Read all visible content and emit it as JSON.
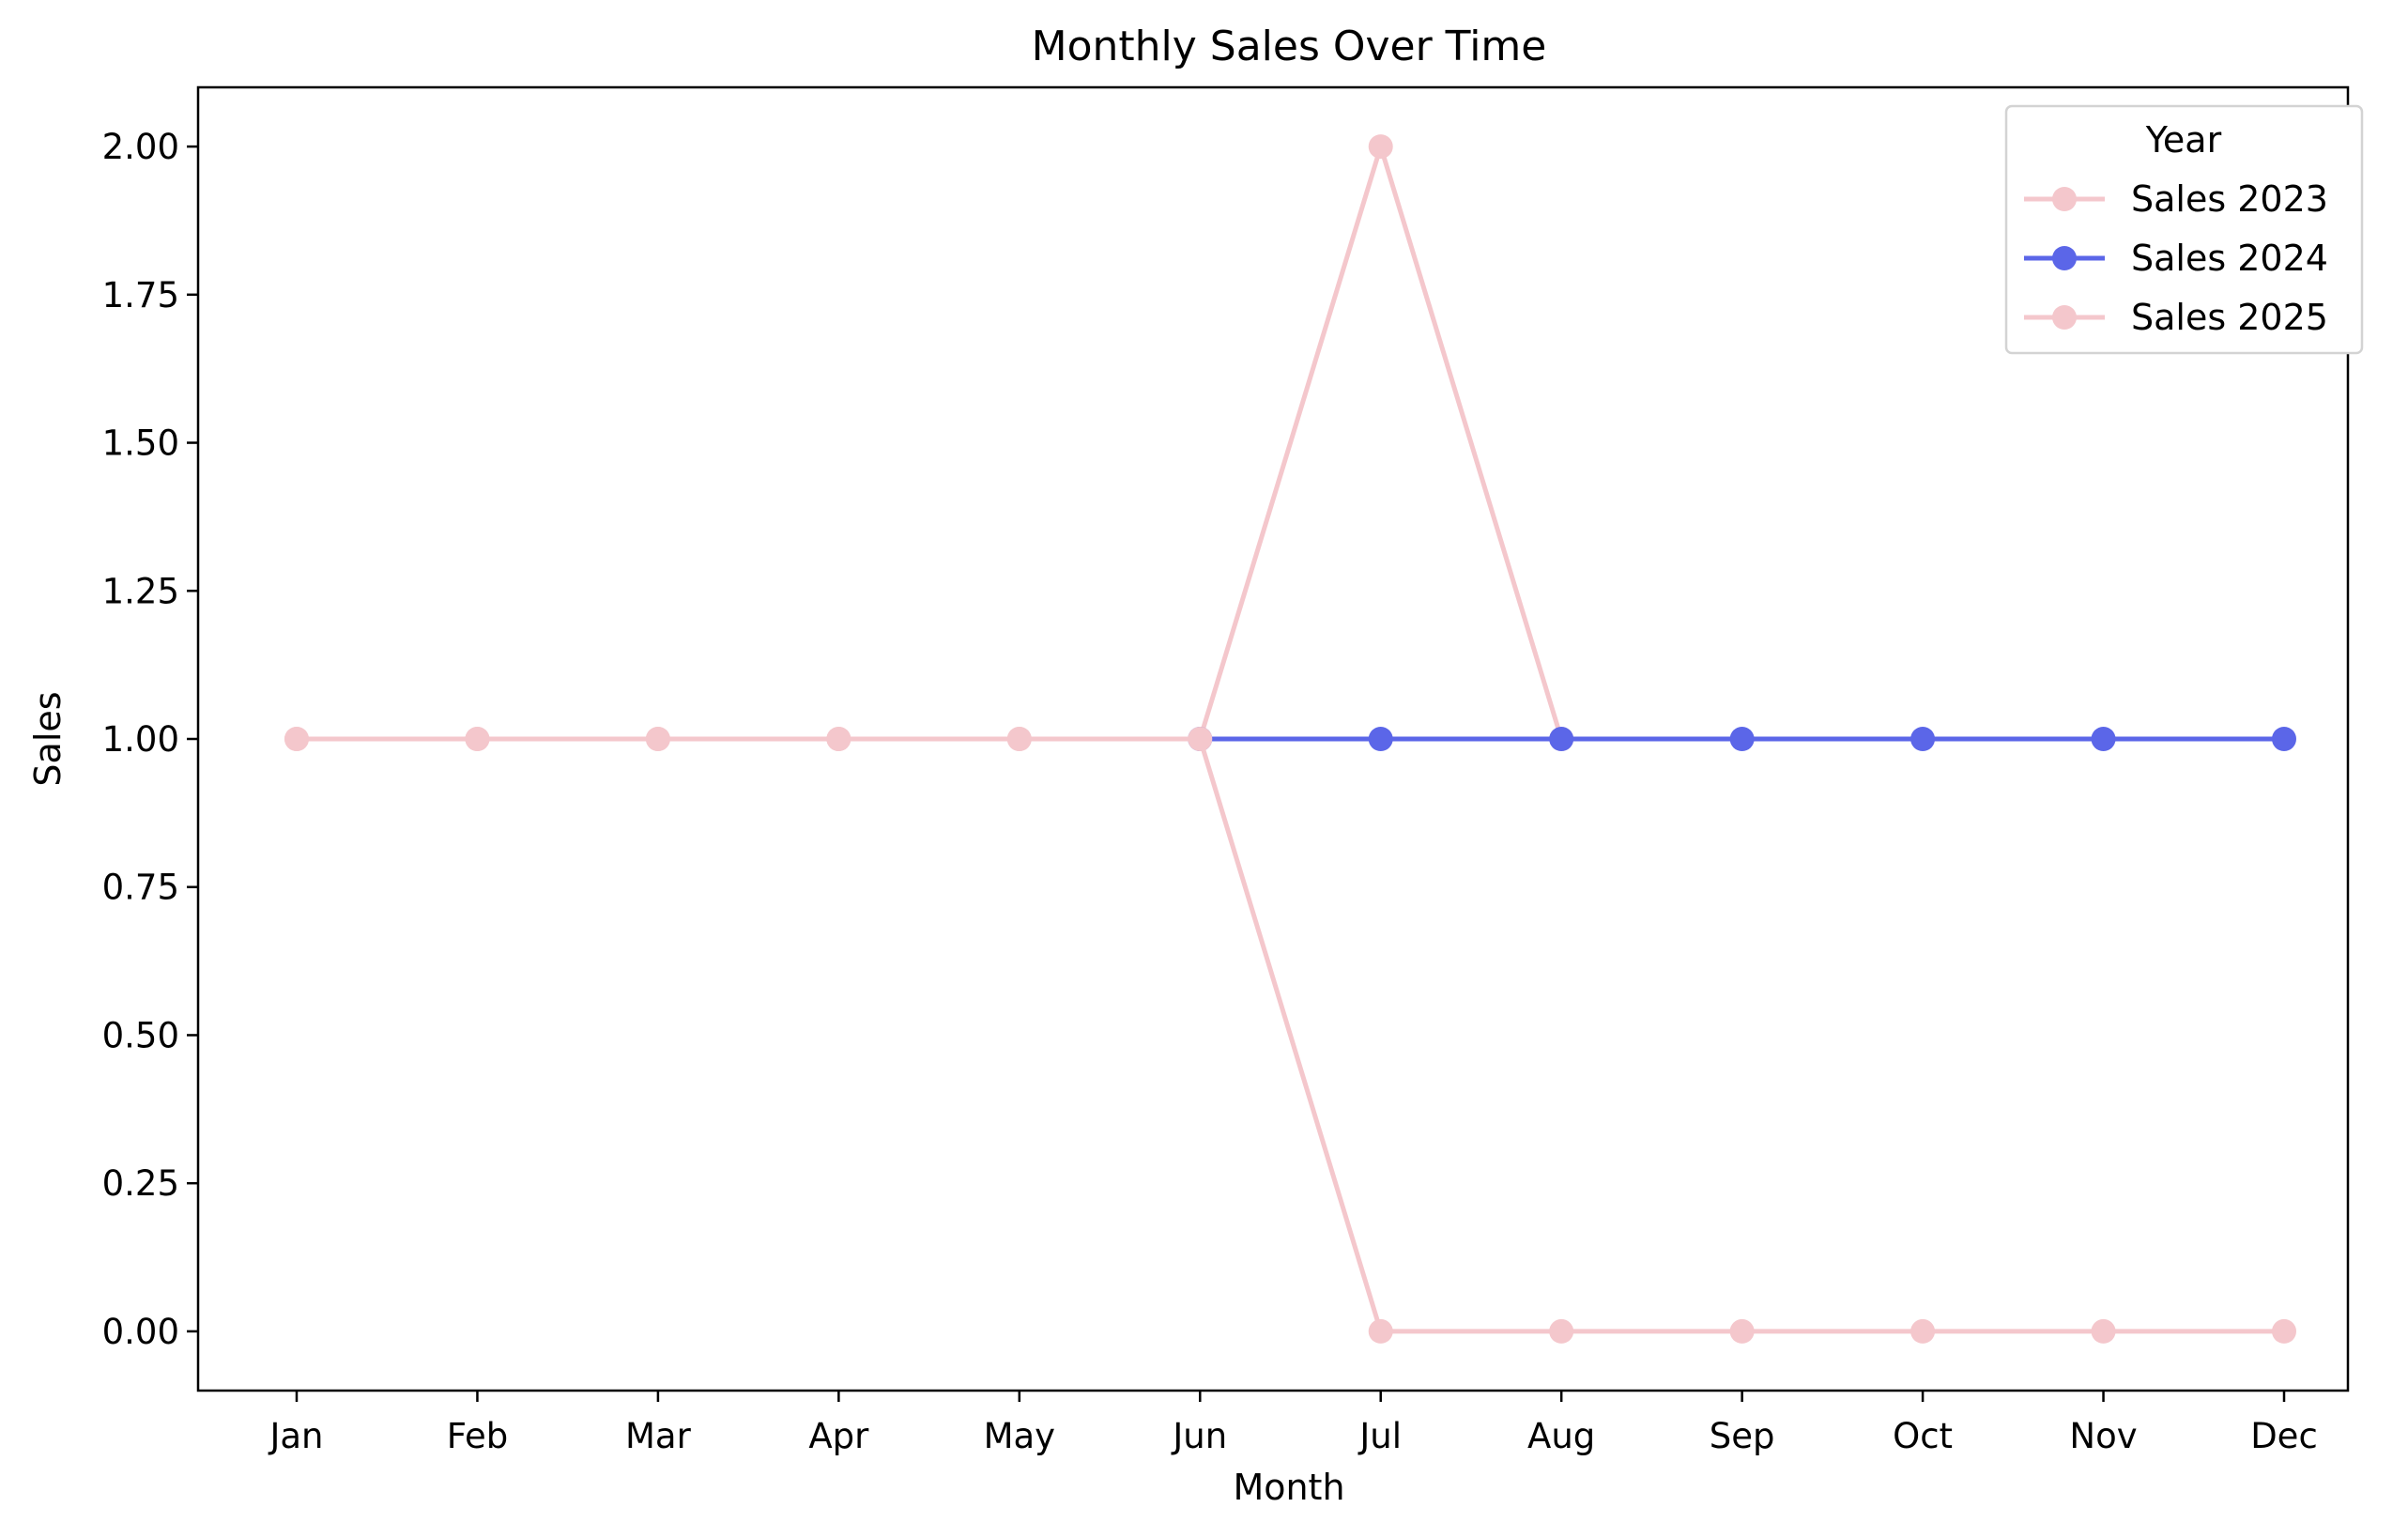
{
  "chart_data": {
    "type": "line",
    "title": "Monthly Sales Over Time",
    "xlabel": "Month",
    "ylabel": "Sales",
    "categories": [
      "Jan",
      "Feb",
      "Mar",
      "Apr",
      "May",
      "Jun",
      "Jul",
      "Aug",
      "Sep",
      "Oct",
      "Nov",
      "Dec"
    ],
    "ylim": [
      -0.1,
      2.1
    ],
    "yticks": [
      "0.00",
      "0.25",
      "0.50",
      "0.75",
      "1.00",
      "1.25",
      "1.50",
      "1.75",
      "2.00"
    ],
    "ytick_values": [
      0,
      0.25,
      0.5,
      0.75,
      1.0,
      1.25,
      1.5,
      1.75,
      2.0
    ],
    "grid": false,
    "legend": {
      "title": "Year",
      "placement": "top-right"
    },
    "series": [
      {
        "name": "Sales 2023",
        "color": "#f4c7cc",
        "marker": "circle",
        "values": [
          1,
          1,
          1,
          1,
          1,
          1,
          2,
          1,
          null,
          null,
          null,
          null
        ]
      },
      {
        "name": "Sales 2024",
        "color": "#5b66e8",
        "marker": "circle",
        "values": [
          null,
          null,
          null,
          null,
          null,
          1,
          1,
          1,
          1,
          1,
          1,
          1
        ]
      },
      {
        "name": "Sales 2025",
        "color": "#f4c7cc",
        "marker": "circle",
        "values": [
          1,
          1,
          1,
          1,
          1,
          1,
          0,
          0,
          0,
          0,
          0,
          0
        ]
      }
    ]
  }
}
